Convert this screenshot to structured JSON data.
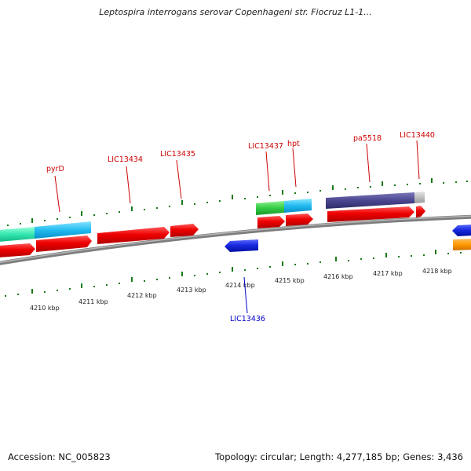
{
  "title": "Leptospira interrogans serovar Copenhageni str. Fiocruz L1-1...",
  "footer": {
    "accession": "Accession: NC_005823",
    "summary": "Topology: circular; Length: 4,277,185 bp; Genes: 3,436"
  },
  "colors": {
    "forward_cds": "#e60000",
    "reverse_cds": "#1020d0",
    "reverse_other": "#ff9900",
    "forward_label": "#cc0000",
    "reverse_label": "#0000cc",
    "tick": "#1a7a1a",
    "backbone": "#8a8a8a"
  },
  "gene_labels": {
    "forward": [
      "pyrD",
      "LIC13434",
      "LIC13435",
      "LIC13437",
      "hpt",
      "pa5518",
      "LIC13440"
    ],
    "reverse": [
      "LIC13436"
    ]
  },
  "kbp_labels": [
    "4210 kbp",
    "4211 kbp",
    "4212 kbp",
    "4213 kbp",
    "4214 kbp",
    "4215 kbp",
    "4216 kbp",
    "4217 kbp",
    "4218 kbp"
  ]
}
